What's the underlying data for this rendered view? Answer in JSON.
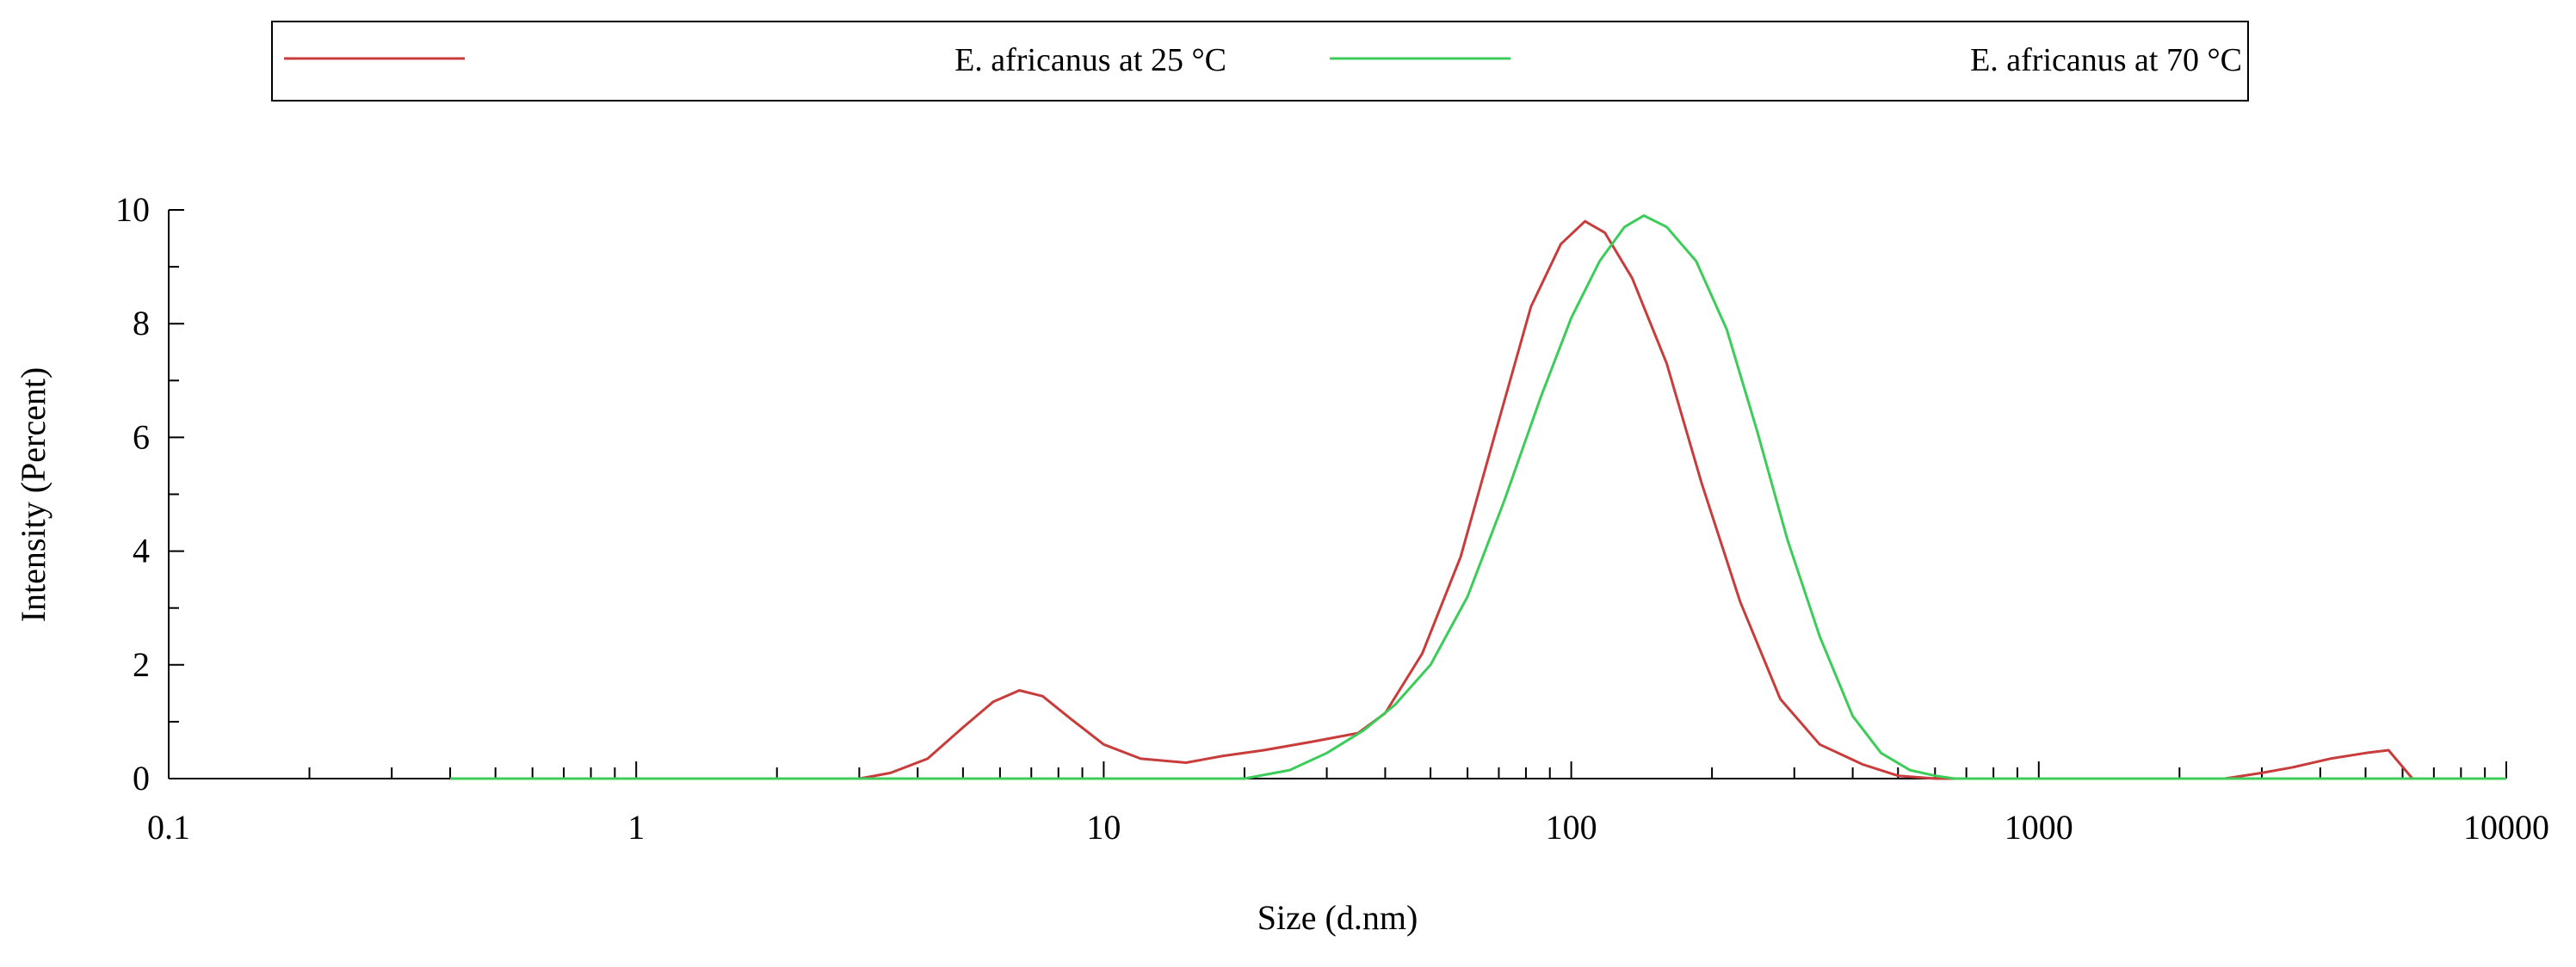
{
  "chart_data": {
    "type": "line",
    "title": "",
    "xlabel": "Size (d.nm)",
    "ylabel": "Intensity (Percent)",
    "xscale": "log",
    "xlim": [
      0.1,
      10000
    ],
    "ylim": [
      0,
      10
    ],
    "x_ticks": [
      0.1,
      1,
      10,
      100,
      1000,
      10000
    ],
    "x_tick_labels": [
      "0.1",
      "1",
      "10",
      "100",
      "1000",
      "10000"
    ],
    "y_ticks": [
      0,
      2,
      4,
      6,
      8,
      10
    ],
    "y_tick_labels": [
      "0",
      "2",
      "4",
      "6",
      "8",
      "10"
    ],
    "grid": false,
    "legend_position": "top",
    "series": [
      {
        "name": "E. africanus at 25 °C",
        "color": "#c83c3c",
        "x": [
          0.4,
          3.0,
          3.5,
          4.2,
          5.0,
          5.8,
          6.6,
          7.4,
          8.5,
          10,
          12,
          15,
          18,
          22,
          28,
          35,
          40,
          48,
          58,
          70,
          82,
          95,
          107,
          118,
          135,
          160,
          190,
          230,
          280,
          340,
          420,
          500,
          600,
          1000,
          2500,
          3000,
          3500,
          4200,
          5000,
          5600,
          6300,
          10000
        ],
        "y": [
          0,
          0,
          0.1,
          0.35,
          0.9,
          1.35,
          1.55,
          1.45,
          1.05,
          0.6,
          0.35,
          0.28,
          0.4,
          0.5,
          0.65,
          0.8,
          1.15,
          2.2,
          3.9,
          6.3,
          8.3,
          9.4,
          9.8,
          9.6,
          8.8,
          7.3,
          5.2,
          3.1,
          1.4,
          0.6,
          0.25,
          0.05,
          0,
          0,
          0,
          0.1,
          0.2,
          0.35,
          0.45,
          0.5,
          0,
          0
        ]
      },
      {
        "name": "E. africanus at 70 °C",
        "color": "#3ccc5a",
        "x": [
          0.4,
          20,
          25,
          30,
          36,
          42,
          50,
          60,
          72,
          86,
          100,
          115,
          130,
          143,
          160,
          185,
          215,
          250,
          290,
          340,
          400,
          460,
          530,
          600,
          660,
          1000,
          10000
        ],
        "y": [
          0,
          0,
          0.15,
          0.45,
          0.85,
          1.3,
          2.0,
          3.2,
          4.9,
          6.7,
          8.1,
          9.1,
          9.7,
          9.9,
          9.7,
          9.1,
          7.9,
          6.1,
          4.2,
          2.5,
          1.1,
          0.45,
          0.15,
          0.05,
          0,
          0,
          0
        ]
      }
    ]
  }
}
